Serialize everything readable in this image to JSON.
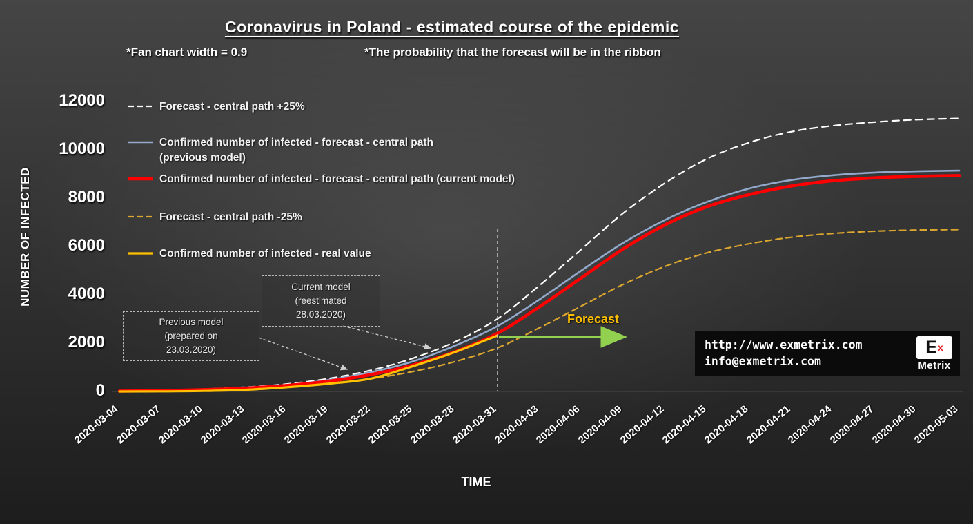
{
  "title": "Coronavirus in Poland - estimated course of the epidemic",
  "subtitle_left": "*Fan chart width = 0.9",
  "subtitle_right": "*The probability that the forecast will be in the ribbon",
  "axes": {
    "y_title": "NUMBER OF INFECTED",
    "x_title": "TIME"
  },
  "annotations": {
    "previous_model": "Previous model\n(prepared on\n23.03.2020)",
    "current_model": "Current model\n(reestimated\n28.03.2020)",
    "forecast": "Forecast"
  },
  "footer": {
    "url": "http://www.exmetrix.com",
    "email": "info@exmetrix.com",
    "logo_letter": "E",
    "logo_sup": "x",
    "logo_word": "Metrix"
  },
  "colors": {
    "forecast_plus25": "#ffffff",
    "previous_model": "#93a9cb",
    "current_model": "#ff0000",
    "forecast_minus25": "#dca72e",
    "real_value": "#ffc000",
    "forecast_arrow": "#92d050",
    "forecast_text": "#ffc000"
  },
  "chart_data": {
    "type": "line",
    "title": "Coronavirus in Poland - estimated course of the epidemic",
    "xlabel": "TIME",
    "ylabel": "NUMBER OF INFECTED",
    "ylim": [
      0,
      12000
    ],
    "yticks": [
      0,
      2000,
      4000,
      6000,
      8000,
      10000,
      12000
    ],
    "grid": false,
    "legend_position": "upper-left-inside",
    "x": [
      "2020-03-04",
      "2020-03-07",
      "2020-03-10",
      "2020-03-13",
      "2020-03-16",
      "2020-03-19",
      "2020-03-22",
      "2020-03-25",
      "2020-03-28",
      "2020-03-31",
      "2020-04-03",
      "2020-04-06",
      "2020-04-09",
      "2020-04-12",
      "2020-04-15",
      "2020-04-18",
      "2020-04-21",
      "2020-04-24",
      "2020-04-27",
      "2020-04-30",
      "2020-05-03"
    ],
    "series": [
      {
        "name": "Forecast - central path +25%",
        "color": "#ffffff",
        "dash": "10 7",
        "width": 2.2,
        "values": [
          25,
          50,
          100,
          180,
          310,
          540,
          880,
          1380,
          2060,
          3000,
          4380,
          5880,
          7380,
          8630,
          9630,
          10300,
          10750,
          11000,
          11150,
          11250,
          11300
        ]
      },
      {
        "name": "Confirmed number of infected - forecast - central path (previous model)",
        "color": "#93a9cb",
        "dash": "",
        "width": 2.6,
        "values": [
          20,
          40,
          85,
          155,
          270,
          480,
          800,
          1250,
          1900,
          2700,
          3800,
          5000,
          6150,
          7100,
          7850,
          8400,
          8750,
          8950,
          9060,
          9110,
          9140
        ]
      },
      {
        "name": "Confirmed number of infected - forecast - central path (current model)",
        "color": "#ff0000",
        "dash": "",
        "width": 4.5,
        "values": [
          15,
          35,
          75,
          140,
          250,
          430,
          700,
          1100,
          1650,
          2400,
          3500,
          4700,
          5900,
          6900,
          7650,
          8150,
          8500,
          8720,
          8840,
          8900,
          8930
        ]
      },
      {
        "name": "Forecast - central path  -25%",
        "color": "#dca72e",
        "dash": "9 6",
        "width": 2.2,
        "values": [
          11,
          26,
          56,
          105,
          190,
          320,
          530,
          830,
          1240,
          1800,
          2630,
          3530,
          4430,
          5180,
          5740,
          6110,
          6380,
          6540,
          6630,
          6680,
          6700
        ]
      },
      {
        "name": "Confirmed number of infected - real value",
        "color": "#ffc000",
        "dash": "",
        "width": 3.2,
        "values": [
          1,
          5,
          22,
          68,
          177,
          325,
          536,
          1051,
          1638,
          2311
        ]
      }
    ]
  }
}
